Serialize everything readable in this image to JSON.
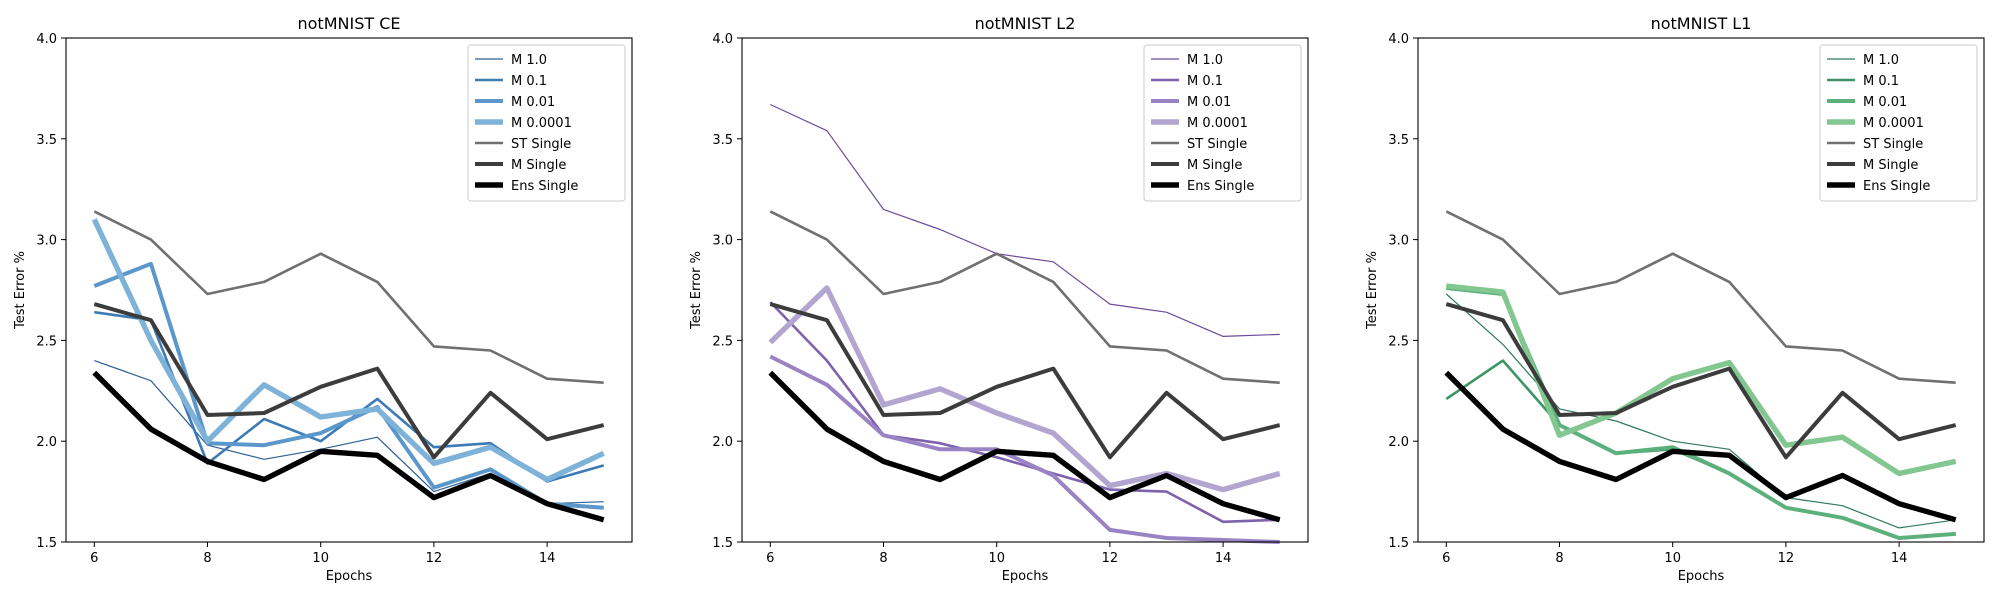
{
  "figure": {
    "background": "#ffffff"
  },
  "chart_data": [
    {
      "type": "line",
      "title": "notMNIST CE",
      "xlabel": "Epochs",
      "ylabel": "Test Error %",
      "xlim": [
        5.5,
        15.5
      ],
      "ylim": [
        1.5,
        4.0
      ],
      "xticks": [
        6,
        8,
        10,
        12,
        14
      ],
      "yticks": [
        1.5,
        2.0,
        2.5,
        3.0,
        3.5,
        4.0
      ],
      "xtick_labels": [
        "6",
        "8",
        "10",
        "12",
        "14"
      ],
      "ytick_labels": [
        "1.5",
        "2.0",
        "2.5",
        "3.0",
        "3.5",
        "4.0"
      ],
      "grid": false,
      "legend": "top-right",
      "x": [
        6,
        7,
        8,
        9,
        10,
        11,
        12,
        13,
        14,
        15
      ],
      "series": [
        {
          "name": "M 1.0",
          "color": "#2f5f94",
          "values": [
            2.4,
            2.3,
            1.98,
            1.91,
            1.96,
            2.02,
            1.75,
            1.84,
            1.69,
            1.7
          ]
        },
        {
          "name": "M 0.1",
          "color": "#3d7bb6",
          "values": [
            2.64,
            2.6,
            1.89,
            2.11,
            2.0,
            2.21,
            1.97,
            1.99,
            1.8,
            1.88
          ]
        },
        {
          "name": "M 0.01",
          "color": "#5b97ca",
          "values": [
            2.77,
            2.88,
            1.99,
            1.98,
            2.04,
            2.17,
            1.77,
            1.86,
            1.69,
            1.67
          ]
        },
        {
          "name": "M 0.0001",
          "color": "#7fb2d8",
          "values": [
            3.1,
            2.5,
            2.0,
            2.28,
            2.12,
            2.16,
            1.89,
            1.97,
            1.81,
            1.94
          ]
        },
        {
          "name": "ST Single",
          "color": "#707070",
          "values": [
            3.14,
            3.0,
            2.73,
            2.79,
            2.93,
            2.79,
            2.47,
            2.45,
            2.31,
            2.29
          ]
        },
        {
          "name": "M Single",
          "color": "#3c3c3c",
          "values": [
            2.68,
            2.6,
            2.13,
            2.14,
            2.27,
            2.36,
            1.92,
            2.24,
            2.01,
            2.08
          ]
        },
        {
          "name": "Ens Single",
          "color": "#000000",
          "values": [
            2.34,
            2.06,
            1.9,
            1.81,
            1.95,
            1.93,
            1.72,
            1.83,
            1.69,
            1.61
          ]
        }
      ]
    },
    {
      "type": "line",
      "title": "notMNIST L2",
      "xlabel": "Epochs",
      "ylabel": "Test Error %",
      "xlim": [
        5.5,
        15.5
      ],
      "ylim": [
        1.5,
        4.0
      ],
      "xticks": [
        6,
        8,
        10,
        12,
        14
      ],
      "yticks": [
        1.5,
        2.0,
        2.5,
        3.0,
        3.5,
        4.0
      ],
      "xtick_labels": [
        "6",
        "8",
        "10",
        "12",
        "14"
      ],
      "ytick_labels": [
        "1.5",
        "2.0",
        "2.5",
        "3.0",
        "3.5",
        "4.0"
      ],
      "grid": false,
      "legend": "top-right",
      "x": [
        6,
        7,
        8,
        9,
        10,
        11,
        12,
        13,
        14,
        15
      ],
      "series": [
        {
          "name": "M 1.0",
          "color": "#6a4c9c",
          "values": [
            3.67,
            3.54,
            3.15,
            3.05,
            2.93,
            2.89,
            2.68,
            2.64,
            2.52,
            2.53
          ]
        },
        {
          "name": "M 0.1",
          "color": "#7d62ad",
          "values": [
            2.69,
            2.4,
            2.03,
            1.99,
            1.92,
            1.84,
            1.76,
            1.75,
            1.6,
            1.61
          ]
        },
        {
          "name": "M 0.01",
          "color": "#9a83c3",
          "values": [
            2.42,
            2.28,
            2.03,
            1.96,
            1.96,
            1.83,
            1.56,
            1.52,
            1.51,
            1.5
          ]
        },
        {
          "name": "M 0.0001",
          "color": "#b2a6d1",
          "values": [
            2.49,
            2.76,
            2.18,
            2.26,
            2.14,
            2.04,
            1.78,
            1.84,
            1.76,
            1.84
          ]
        },
        {
          "name": "ST Single",
          "color": "#707070",
          "values": [
            3.14,
            3.0,
            2.73,
            2.79,
            2.93,
            2.79,
            2.47,
            2.45,
            2.31,
            2.29
          ]
        },
        {
          "name": "M Single",
          "color": "#3c3c3c",
          "values": [
            2.68,
            2.6,
            2.13,
            2.14,
            2.27,
            2.36,
            1.92,
            2.24,
            2.01,
            2.08
          ]
        },
        {
          "name": "Ens Single",
          "color": "#000000",
          "values": [
            2.34,
            2.06,
            1.9,
            1.81,
            1.95,
            1.93,
            1.72,
            1.83,
            1.69,
            1.61
          ]
        }
      ]
    },
    {
      "type": "line",
      "title": "notMNIST L1",
      "xlabel": "Epochs",
      "ylabel": "Test Error %",
      "xlim": [
        5.5,
        15.5
      ],
      "ylim": [
        1.5,
        4.0
      ],
      "xticks": [
        6,
        8,
        10,
        12,
        14
      ],
      "yticks": [
        1.5,
        2.0,
        2.5,
        3.0,
        3.5,
        4.0
      ],
      "xtick_labels": [
        "6",
        "8",
        "10",
        "12",
        "14"
      ],
      "ytick_labels": [
        "1.5",
        "2.0",
        "2.5",
        "3.0",
        "3.5",
        "4.0"
      ],
      "grid": false,
      "legend": "top-right",
      "x": [
        6,
        7,
        8,
        9,
        10,
        11,
        12,
        13,
        14,
        15
      ],
      "series": [
        {
          "name": "M 1.0",
          "color": "#2f7a5a",
          "values": [
            2.73,
            2.48,
            2.16,
            2.1,
            2.0,
            1.96,
            1.72,
            1.68,
            1.57,
            1.61
          ]
        },
        {
          "name": "M 0.1",
          "color": "#3e9466",
          "values": [
            2.21,
            2.4,
            2.08,
            1.94,
            1.96,
            1.84,
            1.67,
            1.62,
            1.52,
            1.54
          ]
        },
        {
          "name": "M 0.01",
          "color": "#5cb07b",
          "values": [
            2.76,
            2.73,
            2.08,
            1.94,
            1.97,
            1.84,
            1.67,
            1.62,
            1.52,
            1.54
          ]
        },
        {
          "name": "M 0.0001",
          "color": "#82c690",
          "values": [
            2.77,
            2.74,
            2.03,
            2.14,
            2.31,
            2.39,
            1.98,
            2.02,
            1.84,
            1.9
          ]
        },
        {
          "name": "ST Single",
          "color": "#707070",
          "values": [
            3.14,
            3.0,
            2.73,
            2.79,
            2.93,
            2.79,
            2.47,
            2.45,
            2.31,
            2.29
          ]
        },
        {
          "name": "M Single",
          "color": "#3c3c3c",
          "values": [
            2.68,
            2.6,
            2.13,
            2.14,
            2.27,
            2.36,
            1.92,
            2.24,
            2.01,
            2.08
          ]
        },
        {
          "name": "Ens Single",
          "color": "#000000",
          "values": [
            2.34,
            2.06,
            1.9,
            1.81,
            1.95,
            1.93,
            1.72,
            1.83,
            1.69,
            1.61
          ]
        }
      ]
    }
  ]
}
